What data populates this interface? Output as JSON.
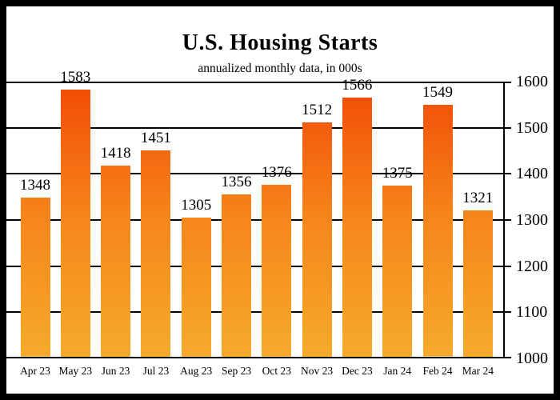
{
  "chart_data": {
    "type": "bar",
    "title": "U.S. Housing Starts",
    "subtitle": "annualized monthly data, in 000s",
    "categories": [
      "Apr 23",
      "May 23",
      "Jun 23",
      "Jul 23",
      "Aug 23",
      "Sep 23",
      "Oct 23",
      "Nov 23",
      "Dec 23",
      "Jan 24",
      "Feb 24",
      "Mar 24"
    ],
    "values": [
      1348,
      1583,
      1418,
      1451,
      1305,
      1356,
      1376,
      1512,
      1566,
      1375,
      1549,
      1321
    ],
    "xlabel": "",
    "ylabel": "",
    "ylim": [
      1000,
      1600
    ],
    "yticks": [
      1600,
      1500,
      1400,
      1300,
      1200,
      1100,
      1000
    ],
    "ytick_interval": 100,
    "axis_labels_side": "right",
    "grid": true,
    "legend": false,
    "value_labels": true,
    "colors": {
      "bar_gradient_top": "#F24A04",
      "bar_gradient_mid": "#F6861B",
      "bar_gradient_bottom": "#F5AA2B",
      "gridline": "#000000",
      "text": "#000000",
      "background": "#FFFFFF",
      "border": "#000000"
    }
  }
}
